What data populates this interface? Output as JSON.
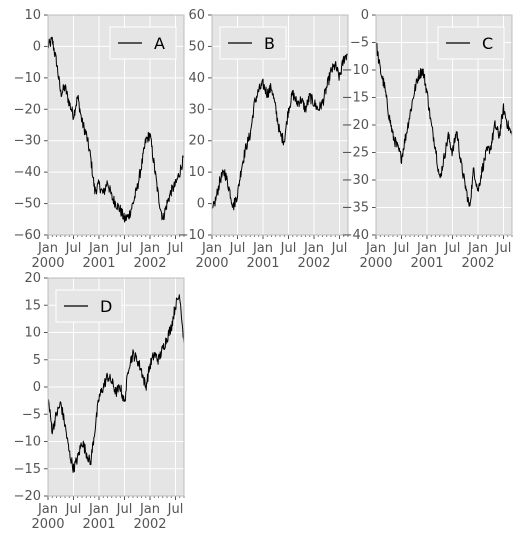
{
  "chart_data": [
    {
      "type": "line",
      "panel": "top-left",
      "ylim": [
        -60,
        10
      ],
      "yticks": [
        10,
        0,
        -10,
        -20,
        -30,
        -40,
        -50,
        -60
      ],
      "xrange": [
        "2000-01",
        "2002-09"
      ],
      "xtick_labels": [
        [
          "Jan",
          "2000"
        ],
        [
          "Jul",
          ""
        ],
        [
          "Jan",
          "2001"
        ],
        [
          "Jul",
          ""
        ],
        [
          "Jan",
          "2002"
        ],
        [
          "Jul",
          ""
        ]
      ],
      "grid": true,
      "legend": "top-right",
      "series": [
        {
          "name": "A",
          "color": "#000000",
          "points": [
            [
              "2000-01",
              0
            ],
            [
              "2000-02",
              2
            ],
            [
              "2000-03",
              -5
            ],
            [
              "2000-04",
              -15
            ],
            [
              "2000-05",
              -13
            ],
            [
              "2000-06",
              -18
            ],
            [
              "2000-07",
              -22
            ],
            [
              "2000-08",
              -16
            ],
            [
              "2000-09",
              -24
            ],
            [
              "2000-10",
              -28
            ],
            [
              "2000-11",
              -35
            ],
            [
              "2000-12",
              -46
            ],
            [
              "2001-01",
              -44
            ],
            [
              "2001-02",
              -47
            ],
            [
              "2001-03",
              -43
            ],
            [
              "2001-04",
              -48
            ],
            [
              "2001-05",
              -50
            ],
            [
              "2001-06",
              -52
            ],
            [
              "2001-07",
              -55
            ],
            [
              "2001-08",
              -54
            ],
            [
              "2001-09",
              -50
            ],
            [
              "2001-10",
              -45
            ],
            [
              "2001-11",
              -38
            ],
            [
              "2001-12",
              -30
            ],
            [
              "2002-01",
              -28
            ],
            [
              "2002-02",
              -38
            ],
            [
              "2002-03",
              -48
            ],
            [
              "2002-04",
              -55
            ],
            [
              "2002-05",
              -50
            ],
            [
              "2002-06",
              -46
            ],
            [
              "2002-07",
              -44
            ],
            [
              "2002-08",
              -40
            ],
            [
              "2002-09",
              -35
            ]
          ]
        }
      ]
    },
    {
      "type": "line",
      "panel": "top-middle",
      "ylim": [
        -10,
        60
      ],
      "yticks": [
        60,
        50,
        40,
        30,
        20,
        10,
        0,
        -10
      ],
      "xrange": [
        "2000-01",
        "2002-09"
      ],
      "xtick_labels": [
        [
          "Jan",
          "2000"
        ],
        [
          "Jul",
          ""
        ],
        [
          "Jan",
          "2001"
        ],
        [
          "Jul",
          ""
        ],
        [
          "Jan",
          "2002"
        ],
        [
          "Jul",
          ""
        ]
      ],
      "grid": true,
      "legend": "top-left",
      "series": [
        {
          "name": "B",
          "color": "#000000",
          "points": [
            [
              "2000-01",
              -3
            ],
            [
              "2000-02",
              2
            ],
            [
              "2000-03",
              8
            ],
            [
              "2000-04",
              10
            ],
            [
              "2000-05",
              5
            ],
            [
              "2000-06",
              -1
            ],
            [
              "2000-07",
              3
            ],
            [
              "2000-08",
              12
            ],
            [
              "2000-09",
              18
            ],
            [
              "2000-10",
              22
            ],
            [
              "2000-11",
              32
            ],
            [
              "2000-12",
              36
            ],
            [
              "2001-01",
              38
            ],
            [
              "2001-02",
              35
            ],
            [
              "2001-03",
              37
            ],
            [
              "2001-04",
              30
            ],
            [
              "2001-05",
              22
            ],
            [
              "2001-06",
              20
            ],
            [
              "2001-07",
              30
            ],
            [
              "2001-08",
              35
            ],
            [
              "2001-09",
              32
            ],
            [
              "2001-10",
              33
            ],
            [
              "2001-11",
              30
            ],
            [
              "2001-12",
              34
            ],
            [
              "2002-01",
              32
            ],
            [
              "2002-02",
              30
            ],
            [
              "2002-03",
              32
            ],
            [
              "2002-04",
              37
            ],
            [
              "2002-05",
              42
            ],
            [
              "2002-06",
              44
            ],
            [
              "2002-07",
              40
            ],
            [
              "2002-08",
              46
            ],
            [
              "2002-09",
              48
            ]
          ]
        }
      ]
    },
    {
      "type": "line",
      "panel": "top-right",
      "ylim": [
        -40,
        0
      ],
      "yticks": [
        0,
        -5,
        -10,
        -15,
        -20,
        -25,
        -30,
        -35,
        -40
      ],
      "xrange": [
        "2000-01",
        "2002-09"
      ],
      "xtick_labels": [
        [
          "Jan",
          "2000"
        ],
        [
          "Jul",
          ""
        ],
        [
          "Jan",
          "2001"
        ],
        [
          "Jul",
          ""
        ],
        [
          "Jan",
          "2002"
        ],
        [
          "Jul",
          ""
        ]
      ],
      "grid": true,
      "legend": "top-right",
      "series": [
        {
          "name": "C",
          "color": "#000000",
          "points": [
            [
              "2000-01",
              -5
            ],
            [
              "2000-02",
              -10
            ],
            [
              "2000-03",
              -13
            ],
            [
              "2000-04",
              -18
            ],
            [
              "2000-05",
              -22
            ],
            [
              "2000-06",
              -24
            ],
            [
              "2000-07",
              -26
            ],
            [
              "2000-08",
              -22
            ],
            [
              "2000-09",
              -18
            ],
            [
              "2000-10",
              -14
            ],
            [
              "2000-11",
              -11
            ],
            [
              "2000-12",
              -10
            ],
            [
              "2001-01",
              -14
            ],
            [
              "2001-02",
              -20
            ],
            [
              "2001-03",
              -24
            ],
            [
              "2001-04",
              -30
            ],
            [
              "2001-05",
              -26
            ],
            [
              "2001-06",
              -22
            ],
            [
              "2001-07",
              -25
            ],
            [
              "2001-08",
              -21
            ],
            [
              "2001-09",
              -27
            ],
            [
              "2001-10",
              -31
            ],
            [
              "2001-11",
              -35
            ],
            [
              "2001-12",
              -28
            ],
            [
              "2002-01",
              -32
            ],
            [
              "2002-02",
              -28
            ],
            [
              "2002-03",
              -25
            ],
            [
              "2002-04",
              -24
            ],
            [
              "2002-05",
              -20
            ],
            [
              "2002-06",
              -22
            ],
            [
              "2002-07",
              -17
            ],
            [
              "2002-08",
              -20
            ],
            [
              "2002-09",
              -22
            ]
          ]
        }
      ]
    },
    {
      "type": "line",
      "panel": "bottom-left",
      "ylim": [
        -20,
        20
      ],
      "yticks": [
        20,
        15,
        10,
        5,
        0,
        -5,
        -10,
        -15,
        -20
      ],
      "xrange": [
        "2000-01",
        "2002-09"
      ],
      "xtick_labels": [
        [
          "Jan",
          "2000"
        ],
        [
          "Jul",
          ""
        ],
        [
          "Jan",
          "2001"
        ],
        [
          "Jul",
          ""
        ],
        [
          "Jan",
          "2002"
        ],
        [
          "Jul",
          ""
        ]
      ],
      "grid": true,
      "legend": "top-left",
      "series": [
        {
          "name": "D",
          "color": "#000000",
          "points": [
            [
              "2000-01",
              -2
            ],
            [
              "2000-02",
              -8
            ],
            [
              "2000-03",
              -5
            ],
            [
              "2000-04",
              -3
            ],
            [
              "2000-05",
              -7
            ],
            [
              "2000-06",
              -12
            ],
            [
              "2000-07",
              -15
            ],
            [
              "2000-08",
              -13
            ],
            [
              "2000-09",
              -10
            ],
            [
              "2000-10",
              -12
            ],
            [
              "2000-11",
              -14
            ],
            [
              "2000-12",
              -8
            ],
            [
              "2001-01",
              -2
            ],
            [
              "2001-02",
              0
            ],
            [
              "2001-03",
              2
            ],
            [
              "2001-04",
              1
            ],
            [
              "2001-05",
              -1
            ],
            [
              "2001-06",
              0
            ],
            [
              "2001-07",
              -3
            ],
            [
              "2001-08",
              4
            ],
            [
              "2001-09",
              6
            ],
            [
              "2001-10",
              5
            ],
            [
              "2001-11",
              3
            ],
            [
              "2001-12",
              0
            ],
            [
              "2002-01",
              4
            ],
            [
              "2002-02",
              6
            ],
            [
              "2002-03",
              5
            ],
            [
              "2002-04",
              7
            ],
            [
              "2002-05",
              9
            ],
            [
              "2002-06",
              11
            ],
            [
              "2002-07",
              15
            ],
            [
              "2002-08",
              17
            ],
            [
              "2002-09",
              8
            ]
          ]
        }
      ]
    }
  ]
}
